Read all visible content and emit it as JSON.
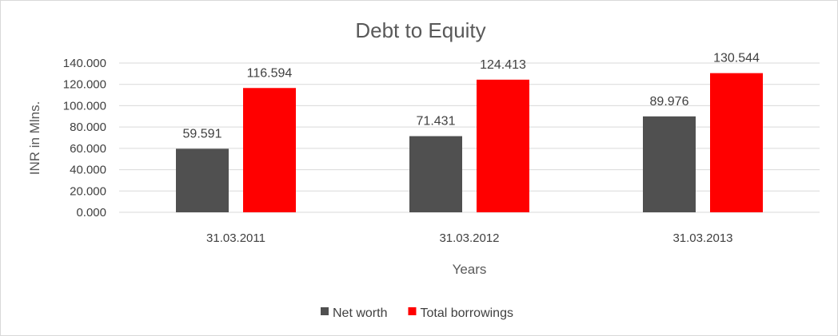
{
  "chart_data": {
    "type": "bar",
    "title": "Debt to Equity",
    "xlabel": "Years",
    "ylabel": "INR in Mlns.",
    "categories": [
      "31.03.2011",
      "31.03.2012",
      "31.03.2013"
    ],
    "series": [
      {
        "name": "Net worth",
        "values": [
          59.591,
          71.431,
          89.976
        ],
        "labels": [
          "59.591",
          "71.431",
          "89.976"
        ],
        "color": "#505050"
      },
      {
        "name": "Total borrowings",
        "values": [
          116.594,
          124.413,
          130.544
        ],
        "labels": [
          "116.594",
          "124.413",
          "130.544"
        ],
        "color": "#ff0000"
      }
    ],
    "ylim": [
      0,
      140
    ],
    "yticks": [
      0,
      20,
      40,
      60,
      80,
      100,
      120,
      140
    ],
    "ytick_labels": [
      "0.000",
      "20.000",
      "40.000",
      "60.000",
      "80.000",
      "100.000",
      "120.000",
      "140.000"
    ],
    "grid": true,
    "gridline_color": "#d9d9d9",
    "legend_position": "bottom"
  }
}
